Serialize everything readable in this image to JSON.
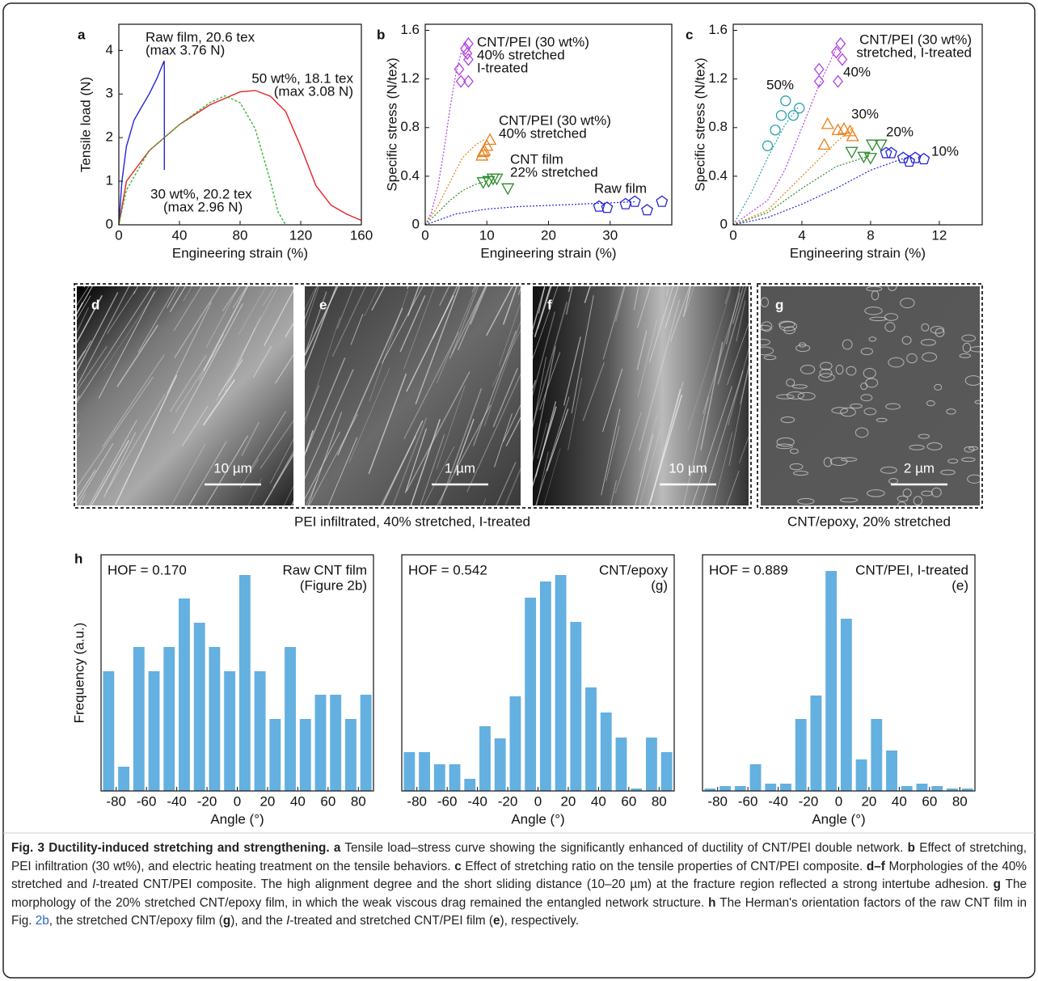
{
  "chart_data": [
    {
      "panel": "a",
      "type": "line",
      "xlabel": "Engineering strain (%)",
      "ylabel": "Tensile load (N)",
      "xlim": [
        0,
        160
      ],
      "ylim": [
        0,
        4.6
      ],
      "xticks": [
        0,
        40,
        80,
        120,
        160
      ],
      "yticks": [
        0,
        1,
        2,
        3,
        4
      ],
      "series": [
        {
          "name": "Raw film, 20.6 tex",
          "note": "(max 3.76 N)",
          "color": "#2424d8",
          "dash": false,
          "x": [
            0,
            2,
            5,
            10,
            15,
            20,
            25,
            28,
            29.9,
            30,
            30
          ],
          "values": [
            0,
            1.0,
            1.8,
            2.4,
            2.7,
            3.0,
            3.35,
            3.6,
            3.76,
            3.5,
            1.26
          ]
        },
        {
          "name": "50 wt%, 18.1 tex",
          "note": "(max 3.08 N)",
          "color": "#e82028",
          "dash": false,
          "x": [
            0,
            5,
            20,
            40,
            60,
            80,
            90,
            100,
            110,
            120,
            130,
            140,
            150,
            160
          ],
          "values": [
            0,
            1.0,
            1.7,
            2.3,
            2.75,
            3.05,
            3.08,
            2.95,
            2.6,
            1.8,
            0.9,
            0.45,
            0.25,
            0.1
          ]
        },
        {
          "name": "30 wt%, 20.2 tex",
          "note": "(max 2.96 N)",
          "color": "#38b838",
          "dash": true,
          "x": [
            0,
            5,
            20,
            40,
            60,
            70,
            80,
            90,
            100,
            105,
            110
          ],
          "values": [
            0,
            0.8,
            1.7,
            2.3,
            2.8,
            2.96,
            2.8,
            2.2,
            1.0,
            0.3,
            0
          ]
        }
      ]
    },
    {
      "panel": "b",
      "type": "scatter",
      "xlabel": "Engineering strain (%)",
      "ylabel": "Specific stress (N/tex)",
      "xlim": [
        0,
        40
      ],
      "ylim": [
        0,
        1.65
      ],
      "xticks": [
        0,
        10,
        20,
        30
      ],
      "yticks": [
        0,
        0.4,
        0.8,
        1.2,
        1.6
      ],
      "series": [
        {
          "name": "CNT/PEI (30 wt%)",
          "label_lines": [
            "40% stretched",
            "I-treated"
          ],
          "color": "#b040e0",
          "marker": "diamond",
          "x": [
            5.5,
            5.8,
            6.8,
            7.0,
            7.0,
            7.0,
            6.5
          ],
          "values": [
            1.28,
            1.18,
            1.41,
            1.49,
            1.36,
            1.18,
            1.45
          ],
          "fit_x": [
            0,
            1,
            2,
            3,
            4,
            5,
            6
          ],
          "fit_y": [
            0,
            0.1,
            0.3,
            0.6,
            0.95,
            1.25,
            1.45
          ]
        },
        {
          "name": "CNT/PEI (30 wt%)",
          "label_lines": [
            "40% stretched"
          ],
          "color": "#e8801c",
          "marker": "triangle",
          "x": [
            9.2,
            9.6,
            10.0,
            10.5,
            9.4
          ],
          "values": [
            0.57,
            0.61,
            0.65,
            0.7,
            0.6
          ],
          "fit_x": [
            0,
            2,
            4,
            6,
            8,
            9.5
          ],
          "fit_y": [
            0,
            0.15,
            0.35,
            0.55,
            0.65,
            0.7
          ]
        },
        {
          "name": "CNT film",
          "label_lines": [
            "22% stretched"
          ],
          "color": "#2a8a2a",
          "marker": "triangle-down",
          "x": [
            9.4,
            10.3,
            11.0,
            11.6,
            13.4
          ],
          "values": [
            0.35,
            0.36,
            0.38,
            0.38,
            0.3
          ],
          "fit_x": [
            0,
            2,
            4,
            6,
            8,
            10
          ],
          "fit_y": [
            0,
            0.1,
            0.2,
            0.28,
            0.33,
            0.36
          ]
        },
        {
          "name": "Raw film",
          "label_lines": [],
          "color": "#2424d8",
          "marker": "pentagon",
          "x": [
            28.2,
            29.5,
            32.5,
            34.0,
            36.0,
            38.4
          ],
          "values": [
            0.15,
            0.14,
            0.17,
            0.19,
            0.12,
            0.19
          ],
          "fit_x": [
            0,
            5,
            10,
            15,
            20,
            25,
            30,
            34
          ],
          "fit_y": [
            0,
            0.09,
            0.13,
            0.15,
            0.16,
            0.17,
            0.18,
            0.19
          ]
        }
      ]
    },
    {
      "panel": "c",
      "type": "scatter",
      "xlabel": "Engineering strain (%)",
      "ylabel": "Specific stress (N/tex)",
      "title_lines": [
        "CNT/PEI (30 wt%)",
        "stretched, I-treated"
      ],
      "xlim": [
        0,
        14.5
      ],
      "ylim": [
        0,
        1.65
      ],
      "xticks": [
        0,
        4,
        8,
        12
      ],
      "yticks": [
        0,
        0.4,
        0.8,
        1.2,
        1.6
      ],
      "series": [
        {
          "name": "50%",
          "label_lines": [],
          "color": "#2aa0a8",
          "marker": "circle",
          "x": [
            2.0,
            2.45,
            2.8,
            3.05,
            3.5,
            3.85
          ],
          "values": [
            0.65,
            0.78,
            0.9,
            1.02,
            0.9,
            0.96
          ],
          "fit_x": [
            0,
            1,
            2,
            3,
            3.8
          ],
          "fit_y": [
            0,
            0.25,
            0.55,
            0.82,
            0.97
          ]
        },
        {
          "name": "40%",
          "label_lines": [],
          "color": "#b040e0",
          "marker": "diamond",
          "x": [
            5.0,
            5.0,
            6.0,
            6.25,
            6.35,
            6.1
          ],
          "values": [
            1.18,
            1.28,
            1.42,
            1.49,
            1.36,
            1.18
          ],
          "fit_x": [
            0,
            2,
            3,
            4,
            5,
            6
          ],
          "fit_y": [
            0,
            0.2,
            0.45,
            0.8,
            1.15,
            1.45
          ]
        },
        {
          "name": "30%",
          "label_lines": [],
          "color": "#e8801c",
          "marker": "triangle",
          "x": [
            5.3,
            5.5,
            6.1,
            6.45,
            6.8,
            6.95
          ],
          "values": [
            0.66,
            0.83,
            0.78,
            0.79,
            0.77,
            0.73
          ],
          "fit_x": [
            0,
            2,
            4,
            6,
            7
          ],
          "fit_y": [
            0,
            0.12,
            0.4,
            0.68,
            0.8
          ]
        },
        {
          "name": "20%",
          "label_lines": [],
          "color": "#2a8a2a",
          "marker": "triangle-down",
          "x": [
            6.9,
            7.6,
            8.0,
            8.1,
            8.6
          ],
          "values": [
            0.6,
            0.56,
            0.55,
            0.66,
            0.66
          ],
          "fit_x": [
            0,
            2,
            4,
            6,
            8
          ],
          "fit_y": [
            0,
            0.1,
            0.3,
            0.48,
            0.57
          ]
        },
        {
          "name": "10%",
          "label_lines": [],
          "color": "#2424d8",
          "marker": "pentagon",
          "x": [
            8.9,
            9.2,
            9.9,
            10.25,
            10.6,
            11.1
          ],
          "values": [
            0.59,
            0.59,
            0.55,
            0.52,
            0.55,
            0.54
          ],
          "fit_x": [
            0,
            2,
            4,
            6,
            8,
            10,
            10.5
          ],
          "fit_y": [
            0,
            0.06,
            0.17,
            0.3,
            0.45,
            0.55,
            0.55
          ]
        }
      ]
    },
    {
      "panel": "h",
      "type": "histogram",
      "xlabel": "Angle (°)",
      "ylabel": "Frequency (a.u.)",
      "hof": "HOF = 0.170",
      "title_lines": [
        "Raw CNT film",
        "(Figure 2b)"
      ],
      "color": "#64b0e0",
      "xlim": [
        -90,
        90
      ],
      "ylim": [
        0,
        292
      ],
      "xticks": [
        -80,
        -60,
        -40,
        -20,
        0,
        20,
        40,
        60,
        80
      ],
      "bins": [
        -90,
        -80,
        -70,
        -60,
        -50,
        -40,
        -30,
        -20,
        -10,
        0,
        10,
        20,
        30,
        40,
        50,
        60,
        70,
        80,
        90
      ],
      "values": [
        148,
        30,
        178,
        148,
        178,
        238,
        208,
        178,
        148,
        267,
        148,
        89,
        178,
        89,
        119,
        119,
        89,
        119
      ]
    },
    {
      "type": "histogram",
      "xlabel": "Angle (°)",
      "hof": "HOF = 0.542",
      "title_lines": [
        "CNT/epoxy",
        "(g)"
      ],
      "color": "#64b0e0",
      "xlim": [
        -90,
        90
      ],
      "ylim": [
        0,
        292
      ],
      "xticks": [
        -80,
        -60,
        -40,
        -20,
        0,
        20,
        40,
        60,
        80
      ],
      "bins": [
        -90,
        -80,
        -70,
        -60,
        -50,
        -40,
        -30,
        -20,
        -10,
        0,
        10,
        20,
        30,
        40,
        50,
        60,
        70,
        80,
        90
      ],
      "values": [
        48,
        48,
        33,
        33,
        15,
        80,
        65,
        117,
        239,
        259,
        267,
        209,
        128,
        97,
        66,
        3,
        66,
        48
      ]
    },
    {
      "type": "histogram",
      "xlabel": "Angle (°)",
      "hof": "HOF = 0.889",
      "title_lines": [
        "CNT/PEI, I-treated",
        "(e)"
      ],
      "color": "#64b0e0",
      "xlim": [
        -90,
        90
      ],
      "ylim": [
        0,
        292
      ],
      "xticks": [
        -80,
        -60,
        -40,
        -20,
        0,
        20,
        40,
        60,
        80
      ],
      "bins": [
        -90,
        -80,
        -70,
        -60,
        -50,
        -40,
        -30,
        -20,
        -10,
        0,
        10,
        20,
        30,
        40,
        50,
        60,
        70,
        80,
        90
      ],
      "values": [
        3,
        6,
        6,
        33,
        9,
        9,
        89,
        118,
        272,
        213,
        39,
        89,
        50,
        6,
        9,
        6,
        3,
        3
      ]
    }
  ],
  "images": {
    "panels": [
      {
        "label": "d",
        "scale_bar": "10 µm"
      },
      {
        "label": "e",
        "scale_bar": "1 µm"
      },
      {
        "label": "f",
        "scale_bar": "10 µm"
      },
      {
        "label": "g",
        "scale_bar": "2 µm"
      }
    ],
    "captions": [
      "PEI infiltrated, 40% stretched, I-treated",
      "CNT/epoxy, 20% stretched"
    ]
  },
  "caption": [
    {
      "text": "Fig. 3 Ductility-induced stretching and strengthening.",
      "style": "bold"
    },
    {
      "text": " a",
      "style": "bold"
    },
    {
      "text": " Tensile load–stress curve showing the significantly enhanced of ductility of CNT/PEI double network.",
      "style": "normal"
    },
    {
      "text": " b",
      "style": "bold"
    },
    {
      "text": " Effect of stretching, PEI infiltration (30 wt%), and electric heating treatment on the tensile behaviors.",
      "style": "normal"
    },
    {
      "text": " c",
      "style": "bold"
    },
    {
      "text": " Effect of stretching ratio on the tensile properties of CNT/PEI composite.",
      "style": "normal"
    },
    {
      "text": " d–f",
      "style": "bold"
    },
    {
      "text": " Morphologies of the 40% stretched and ",
      "style": "normal"
    },
    {
      "text": "I",
      "style": "italic"
    },
    {
      "text": "-treated CNT/PEI composite. The high alignment degree and the short sliding distance (10–20 µm) at the fracture region reflected a strong intertube adhesion.",
      "style": "normal"
    },
    {
      "text": " g",
      "style": "bold"
    },
    {
      "text": " The morphology of the 20% stretched CNT/epoxy film, in which the weak viscous drag remained the entangled network structure.",
      "style": "normal"
    },
    {
      "text": " h",
      "style": "bold"
    },
    {
      "text": " The Herman's orientation factors of the raw CNT film in Fig. ",
      "style": "normal"
    },
    {
      "text": "2b",
      "style": "link"
    },
    {
      "text": ", the stretched CNT/epoxy film (",
      "style": "normal"
    },
    {
      "text": "g",
      "style": "bold"
    },
    {
      "text": "), and the ",
      "style": "normal"
    },
    {
      "text": "I",
      "style": "italic"
    },
    {
      "text": "-treated and stretched CNT/PEI film (",
      "style": "normal"
    },
    {
      "text": "e",
      "style": "bold"
    },
    {
      "text": "), respectively.",
      "style": "normal"
    }
  ]
}
